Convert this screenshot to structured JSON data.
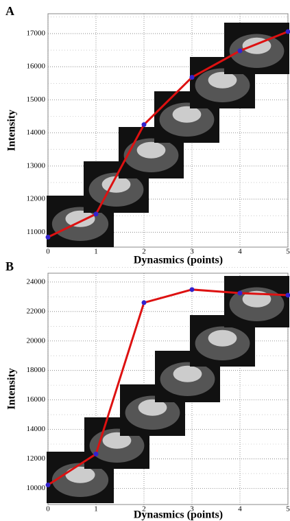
{
  "chart_data": [
    {
      "type": "line",
      "title": "A",
      "xlabel": "Dynasmics (points)",
      "ylabel": "Intensity",
      "x": [
        0,
        1,
        2,
        3,
        4,
        5
      ],
      "values": [
        10850,
        11550,
        14250,
        15680,
        16480,
        17060
      ],
      "color": "#dd1111",
      "marker_color": "#3322cc",
      "xlim": [
        0,
        5
      ],
      "xticks": [
        0,
        1,
        2,
        3,
        4,
        5
      ],
      "ylim": [
        10550,
        17600
      ],
      "yticks": [
        11000,
        12000,
        13000,
        14000,
        15000,
        16000,
        17000
      ],
      "grid": true
    },
    {
      "type": "line",
      "title": "B",
      "xlabel": "Dynasmics (points)",
      "ylabel": "Intensity",
      "x": [
        0,
        1,
        2,
        3,
        4,
        5
      ],
      "values": [
        10230,
        12330,
        22600,
        23490,
        23250,
        23110
      ],
      "color": "#dd1111",
      "marker_color": "#3322cc",
      "xlim": [
        0,
        5
      ],
      "xticks": [
        0,
        1,
        2,
        3,
        4,
        5
      ],
      "ylim": [
        8900,
        24600
      ],
      "yticks": [
        10000,
        12000,
        14000,
        16000,
        18000,
        20000,
        22000,
        24000
      ],
      "grid": true
    }
  ]
}
